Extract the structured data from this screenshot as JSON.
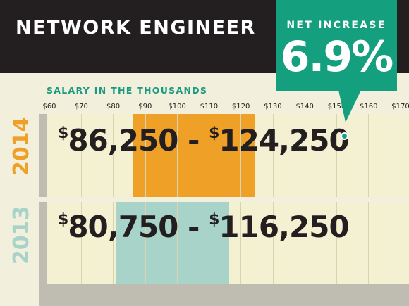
{
  "header": {
    "title": "NETWORK ENGINEER"
  },
  "callout": {
    "label": "NET INCREASE",
    "value": "6.9%"
  },
  "colors": {
    "header_bg": "#231f20",
    "accent": "#14a07f",
    "bar_2014": "#efa027",
    "bar_2013": "#a7d3c9",
    "year_2014": "#efa027",
    "year_2013": "#a7d3c9"
  },
  "chart_data": {
    "type": "bar",
    "orientation": "horizontal-range",
    "title": "NETWORK ENGINEER",
    "subtitle": "SALARY IN THE THOUSANDS",
    "x_ticks": [
      "$60",
      "$70",
      "$80",
      "$90",
      "$100",
      "$110",
      "$120",
      "$130",
      "$140",
      "$150",
      "$160",
      "$170"
    ],
    "xlim": [
      60,
      170
    ],
    "series": [
      {
        "name": "2014",
        "min": 86.25,
        "max": 124.25,
        "label_min": "86,250",
        "label_max": "124,250",
        "dollar": "$",
        "dash": "-"
      },
      {
        "name": "2013",
        "min": 80.75,
        "max": 116.25,
        "label_min": "80,750",
        "label_max": "116,250",
        "dollar": "$",
        "dash": "-"
      }
    ],
    "annotation": {
      "label": "NET INCREASE",
      "value": "6.9%"
    }
  }
}
